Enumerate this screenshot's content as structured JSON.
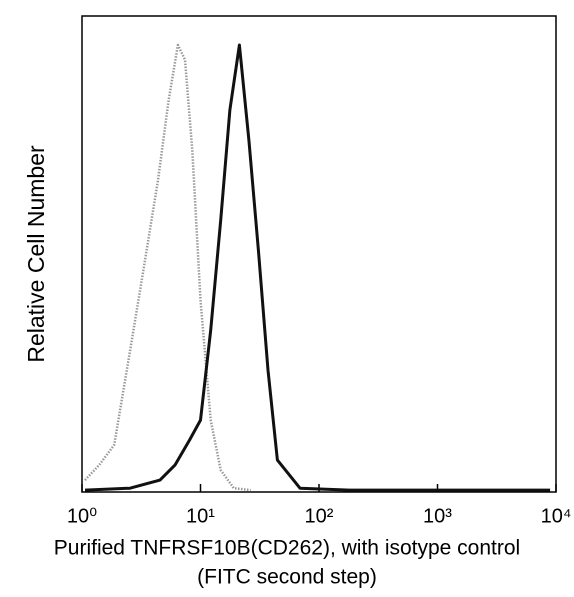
{
  "chart_data": {
    "type": "line",
    "ylabel": "Relative Cell Number",
    "xlabel": [
      "Purified TNFRSF10B(CD262), with isotype control",
      "(FITC second step)"
    ],
    "xscale": "log",
    "xlim": [
      1,
      10000
    ],
    "xticks": [
      {
        "value": 1,
        "label": "10⁰"
      },
      {
        "value": 10,
        "label": "10¹"
      },
      {
        "value": 100,
        "label": "10²"
      },
      {
        "value": 1000,
        "label": "10³"
      },
      {
        "value": 10000,
        "label": "10⁴"
      }
    ],
    "ylim": [
      0,
      100
    ],
    "series": [
      {
        "color": "#9a9a9a",
        "dash": "dotted",
        "x": [
          1.06,
          1.4,
          1.87,
          2.47,
          3.3,
          4.38,
          5.39,
          6.45,
          7.4,
          8.53,
          10.0,
          12.2,
          14.8,
          19.1,
          26.5
        ],
        "values": [
          2.5,
          5.7,
          9.9,
          27.7,
          46.6,
          65.5,
          82.4,
          93.9,
          90.8,
          71.8,
          40.3,
          15.1,
          4.6,
          0.8,
          0.4
        ]
      },
      {
        "color": "#111111",
        "dash": "solid",
        "x": [
          1.06,
          2.54,
          4.55,
          6.11,
          8.07,
          10.0,
          12.2,
          14.8,
          17.7,
          21.3,
          25.6,
          30.8,
          37.1,
          44.6,
          69.1,
          181,
          8910
        ],
        "values": [
          0.4,
          0.8,
          2.5,
          5.7,
          10.9,
          15.1,
          34.0,
          57.1,
          80.3,
          93.9,
          73.9,
          50.8,
          25.6,
          6.7,
          0.8,
          0.4,
          0.4
        ]
      }
    ]
  }
}
